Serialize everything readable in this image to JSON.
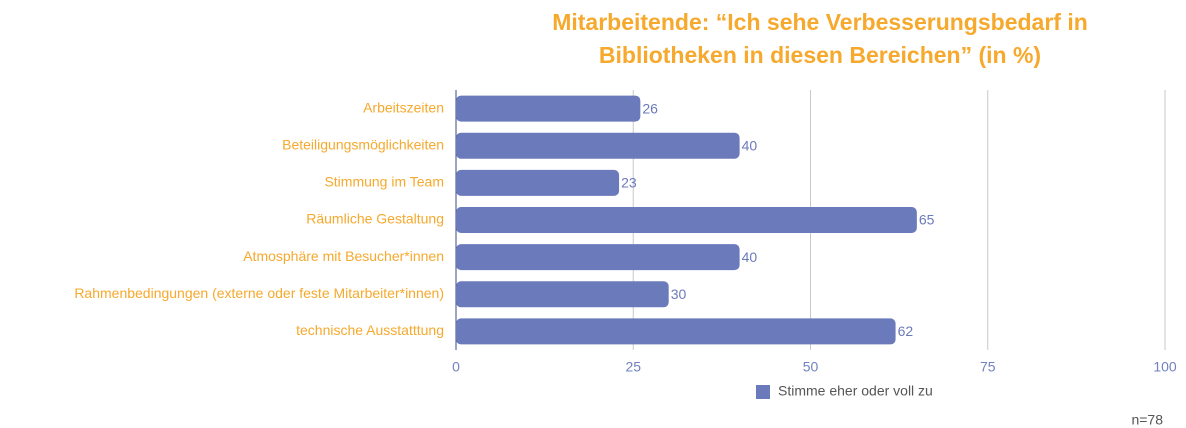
{
  "chart_data": {
    "type": "bar",
    "orientation": "horizontal",
    "title": "Mitarbeitende: “Ich sehe Verbesserungsbedarf in Bibliotheken in diesen Bereichen” (in %)",
    "categories": [
      "Arbeitszeiten",
      "Beteiligungsmöglichkeiten",
      "Stimmung im Team",
      "Räumliche Gestaltung",
      "Atmosphäre mit Besucher*innen",
      "Rahmenbedingungen (externe oder feste Mitarbeiter*innen)",
      "technische Ausstatttung"
    ],
    "series": [
      {
        "name": "Stimme eher oder voll zu",
        "color": "#6b7abb",
        "values": [
          26,
          40,
          23,
          65,
          40,
          30,
          62
        ]
      }
    ],
    "xlim": [
      0,
      100
    ],
    "xticks": [
      0,
      25,
      50,
      75,
      100
    ],
    "grid": true,
    "legend": "bottom",
    "annotations": [
      "n=78"
    ]
  }
}
